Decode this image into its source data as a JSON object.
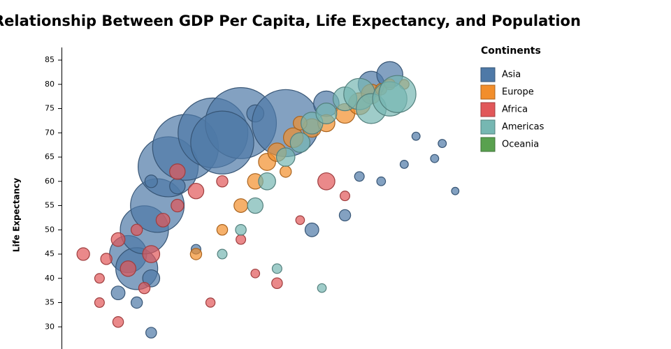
{
  "chart_data": {
    "type": "scatter",
    "title": "Relationship Between GDP Per Capita, Life Expectancy, and Population",
    "y_label": "Life Expectancy",
    "legend_title": "Continents",
    "legend_position": "top-right",
    "x_scale": "log",
    "xlim": [
      250,
      150000
    ],
    "ylim": [
      25,
      87.6
    ],
    "yticks": [
      30,
      35,
      40,
      45,
      50,
      55,
      60,
      65,
      70,
      75,
      80,
      85
    ],
    "series": [
      {
        "name": "Asia",
        "color": "#4e79a7",
        "x": [
          1000,
          600,
          700,
          800,
          900,
          1100,
          1300,
          1700,
          2600,
          4000,
          3000,
          1500,
          1000,
          5000,
          8000,
          15000,
          30000,
          40000,
          60000,
          80000,
          90000,
          110000,
          20000,
          35000,
          50000,
          25000,
          12000,
          800,
          1000,
          2000
        ],
        "values": [
          28.8,
          37,
          45,
          42,
          50,
          55,
          63,
          67,
          70,
          72,
          68,
          59,
          60,
          74,
          72,
          76,
          80,
          82,
          69.3,
          64.7,
          67.8,
          58,
          53,
          60,
          63.5,
          61,
          50,
          35,
          40,
          46
        ],
        "sizes": [
          8,
          20,
          300,
          400,
          550,
          700,
          900,
          1100,
          1250,
          1300,
          1000,
          30,
          15,
          40,
          1150,
          120,
          127,
          127,
          2,
          2,
          2,
          1,
          10,
          3,
          2,
          5,
          20,
          10,
          40,
          5
        ]
      },
      {
        "name": "Europe",
        "color": "#f28e2b",
        "x": [
          2000,
          3000,
          4000,
          5000,
          6000,
          7000,
          9000,
          12000,
          15000,
          20000,
          25000,
          30000,
          35000,
          40000,
          50000,
          8000,
          10000
        ],
        "values": [
          45,
          50,
          55,
          60,
          64,
          66,
          69,
          71,
          72,
          74,
          76,
          78,
          79,
          80,
          80,
          62,
          72
        ],
        "sizes": [
          10,
          8,
          20,
          30,
          40,
          50,
          60,
          50,
          40,
          60,
          80,
          60,
          10,
          8,
          5,
          10,
          20
        ]
      },
      {
        "name": "Africa",
        "color": "#e15759",
        "x": [
          350,
          450,
          500,
          600,
          700,
          800,
          1000,
          1200,
          1500,
          2000,
          3000,
          4000,
          5000,
          7000,
          10000,
          15000,
          20000,
          450,
          600,
          900,
          1500,
          2500
        ],
        "values": [
          45,
          40,
          44,
          48,
          42,
          50,
          45,
          52,
          55,
          58,
          60,
          48,
          41,
          39,
          52,
          60,
          57,
          35,
          31,
          38,
          62,
          35
        ],
        "sizes": [
          15,
          5,
          10,
          20,
          30,
          10,
          40,
          20,
          15,
          30,
          10,
          5,
          3,
          8,
          3,
          40,
          5,
          5,
          8,
          10,
          30,
          4
        ]
      },
      {
        "name": "Americas",
        "color": "#76b7b2",
        "x": [
          3000,
          4000,
          5000,
          6000,
          8000,
          10000,
          12000,
          15000,
          20000,
          25000,
          30000,
          40000,
          45000,
          14000,
          7000
        ],
        "values": [
          45,
          50,
          55,
          60,
          65,
          68,
          72,
          74,
          77,
          78,
          75,
          77,
          78,
          38,
          42
        ],
        "sizes": [
          5,
          8,
          30,
          40,
          50,
          60,
          80,
          70,
          100,
          200,
          180,
          250,
          300,
          3,
          5
        ]
      },
      {
        "name": "Oceania",
        "color": "#59a14f",
        "x": [],
        "values": [],
        "sizes": []
      }
    ]
  }
}
